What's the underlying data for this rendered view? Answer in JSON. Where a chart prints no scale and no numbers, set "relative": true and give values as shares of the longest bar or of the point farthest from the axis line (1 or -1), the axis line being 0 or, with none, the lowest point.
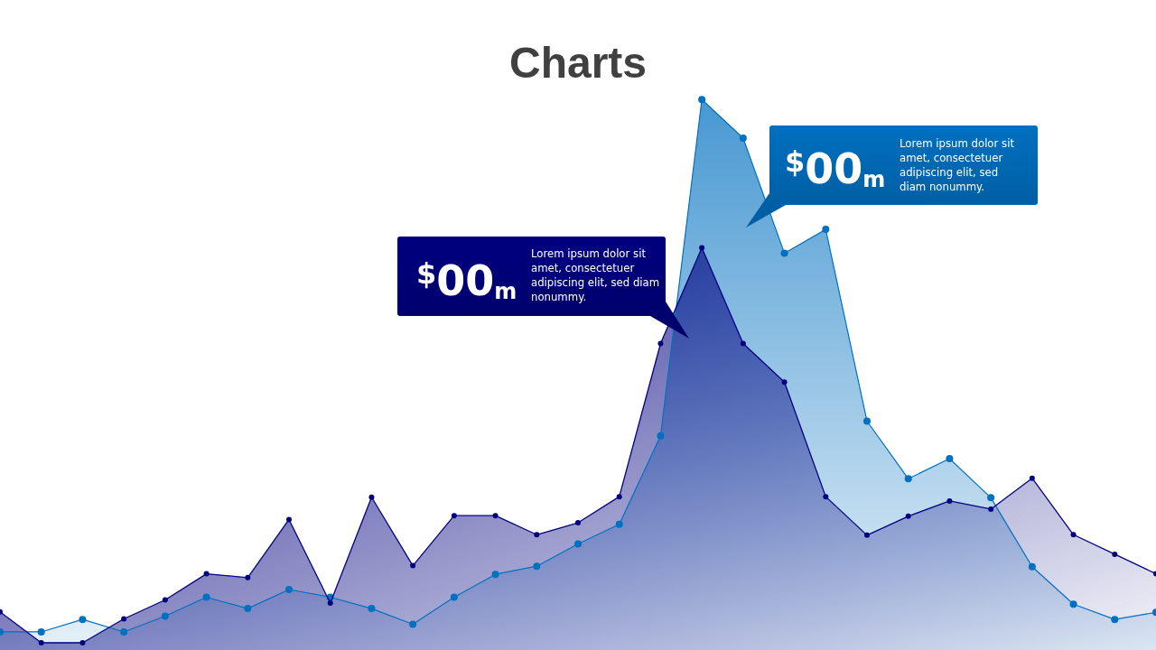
{
  "chart_data": {
    "type": "area",
    "title": "Charts",
    "relative": true,
    "marker": "circle",
    "categories": [
      null,
      null,
      null,
      null,
      null,
      null,
      null,
      null,
      null,
      null,
      null,
      null,
      null,
      null,
      null,
      null,
      null,
      null,
      null,
      null,
      null,
      null,
      null,
      null,
      null,
      null,
      null,
      null,
      null
    ],
    "series": [
      {
        "color": "#0070c0",
        "values": [
          0.02,
          0.02,
          0.043,
          0.02,
          0.049,
          0.084,
          0.063,
          0.098,
          0.084,
          0.063,
          0.034,
          0.084,
          0.126,
          0.141,
          0.182,
          0.218,
          0.381,
          1,
          0.929,
          0.717,
          0.761,
          0.408,
          0.302,
          0.339,
          0.267,
          0.14,
          0.071,
          0.043,
          0.056
        ]
      },
      {
        "color": "#000080",
        "values": [
          0.057,
          0,
          0,
          0.044,
          0.079,
          0.127,
          0.12,
          0.227,
          0.073,
          0.268,
          0.142,
          0.234,
          0.234,
          0.199,
          0.221,
          0.269,
          0.551,
          0.727,
          0.551,
          0.48,
          0.269,
          0.198,
          0.233,
          0.261,
          0.246,
          0.303,
          0.199,
          0.163,
          0.127
        ]
      }
    ],
    "annotations": [
      "$^{$}$00$_{m}$",
      "Lorem ipsum dolor sit amet, consectetuer adipiscing elit, sed diam nonummy.",
      "$^{$}$00$_{m}$",
      "Lorem ipsum dolor sit amet, consectetuer adipiscing elit, sed diam nonummy."
    ]
  }
}
